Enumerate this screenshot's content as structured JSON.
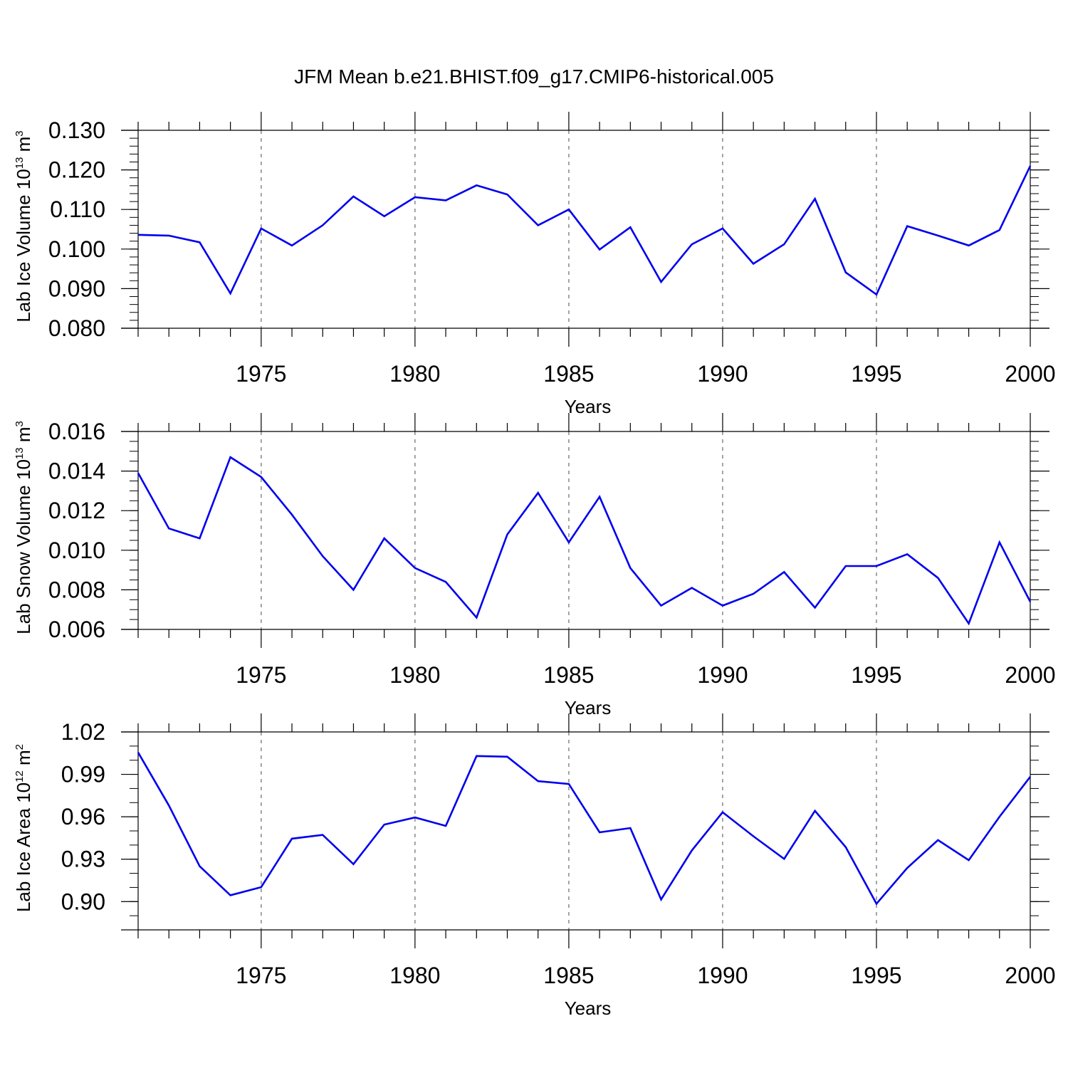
{
  "title": "JFM Mean b.e21.BHIST.f09_g17.CMIP6-historical.005",
  "chart_data": [
    {
      "type": "line",
      "title": "JFM Mean b.e21.BHIST.f09_g17.CMIP6-historical.005",
      "xlabel": "Years",
      "ylabel": "Lab Ice Volume 10",
      "ylabel_exp": "13",
      "ylabel_unit": " m",
      "ylabel_unit_exp": "3",
      "xlim": [
        1971,
        2000
      ],
      "ylim": [
        0.08,
        0.13
      ],
      "x_ticks": [
        1975,
        1980,
        1985,
        1990,
        1995,
        2000
      ],
      "y_ticks": [
        "0.080",
        "0.090",
        "0.100",
        "0.110",
        "0.120",
        "0.130"
      ],
      "y_tick_values": [
        0.08,
        0.09,
        0.1,
        0.11,
        0.12,
        0.13
      ],
      "line_color": "#0000ee",
      "grid": "vertical dashed at major x ticks",
      "x": [
        1971,
        1972,
        1973,
        1974,
        1975,
        1976,
        1977,
        1978,
        1979,
        1980,
        1981,
        1982,
        1983,
        1984,
        1985,
        1986,
        1987,
        1988,
        1989,
        1990,
        1991,
        1992,
        1993,
        1994,
        1995,
        1996,
        1997,
        1998,
        1999,
        2000
      ],
      "values": [
        0.1036,
        0.1034,
        0.1017,
        0.0888,
        0.1052,
        0.1009,
        0.106,
        0.1133,
        0.1083,
        0.1131,
        0.1123,
        0.1161,
        0.1138,
        0.106,
        0.11,
        0.0999,
        0.1055,
        0.0917,
        0.1012,
        0.1052,
        0.0963,
        0.1012,
        0.1127,
        0.0941,
        0.0885,
        0.1058,
        0.1034,
        0.1009,
        0.1048,
        0.121
      ]
    },
    {
      "type": "line",
      "xlabel": "Years",
      "ylabel": "Lab Snow Volume 10",
      "ylabel_exp": "13",
      "ylabel_unit": " m",
      "ylabel_unit_exp": "3",
      "xlim": [
        1971,
        2000
      ],
      "ylim": [
        0.006,
        0.016
      ],
      "x_ticks": [
        1975,
        1980,
        1985,
        1990,
        1995,
        2000
      ],
      "y_ticks": [
        "0.006",
        "0.008",
        "0.010",
        "0.012",
        "0.014",
        "0.016"
      ],
      "y_tick_values": [
        0.006,
        0.008,
        0.01,
        0.012,
        0.014,
        0.016
      ],
      "line_color": "#0000ee",
      "grid": "vertical dashed at major x ticks",
      "x": [
        1971,
        1972,
        1973,
        1974,
        1975,
        1976,
        1977,
        1978,
        1979,
        1980,
        1981,
        1982,
        1983,
        1984,
        1985,
        1986,
        1987,
        1988,
        1989,
        1990,
        1991,
        1992,
        1993,
        1994,
        1995,
        1996,
        1997,
        1998,
        1999,
        2000
      ],
      "values": [
        0.0139,
        0.0111,
        0.0106,
        0.0147,
        0.0137,
        0.0118,
        0.0097,
        0.008,
        0.0106,
        0.0091,
        0.0084,
        0.0066,
        0.0108,
        0.0129,
        0.0104,
        0.0127,
        0.0091,
        0.0072,
        0.0081,
        0.0072,
        0.0078,
        0.0089,
        0.0071,
        0.0092,
        0.0092,
        0.0098,
        0.0086,
        0.0063,
        0.0104,
        0.0074
      ]
    },
    {
      "type": "line",
      "xlabel": "Years",
      "ylabel": "Lab Ice Area 10",
      "ylabel_exp": "12",
      "ylabel_unit": " m",
      "ylabel_unit_exp": "2",
      "xlim": [
        1971,
        2000
      ],
      "ylim": [
        0.88,
        1.02
      ],
      "x_ticks": [
        1975,
        1980,
        1985,
        1990,
        1995,
        2000
      ],
      "y_ticks": [
        "0.90",
        "0.93",
        "0.96",
        "0.99",
        "1.02"
      ],
      "y_tick_values": [
        0.9,
        0.93,
        0.96,
        0.99,
        1.02
      ],
      "line_color": "#0000ee",
      "grid": "vertical dashed at major x ticks",
      "x": [
        1971,
        1972,
        1973,
        1974,
        1975,
        1976,
        1977,
        1978,
        1979,
        1980,
        1981,
        1982,
        1983,
        1984,
        1985,
        1986,
        1987,
        1988,
        1989,
        1990,
        1991,
        1992,
        1993,
        1994,
        1995,
        1996,
        1997,
        1998,
        1999,
        2000
      ],
      "values": [
        1.0055,
        0.968,
        0.925,
        0.9045,
        0.9102,
        0.9445,
        0.9472,
        0.9265,
        0.9545,
        0.9595,
        0.9535,
        1.003,
        1.0025,
        0.9852,
        0.9832,
        0.949,
        0.952,
        0.9015,
        0.9362,
        0.9632,
        0.9462,
        0.9302,
        0.9642,
        0.9385,
        0.8985,
        0.9238,
        0.9435,
        0.9293,
        0.96,
        0.9883
      ]
    }
  ]
}
